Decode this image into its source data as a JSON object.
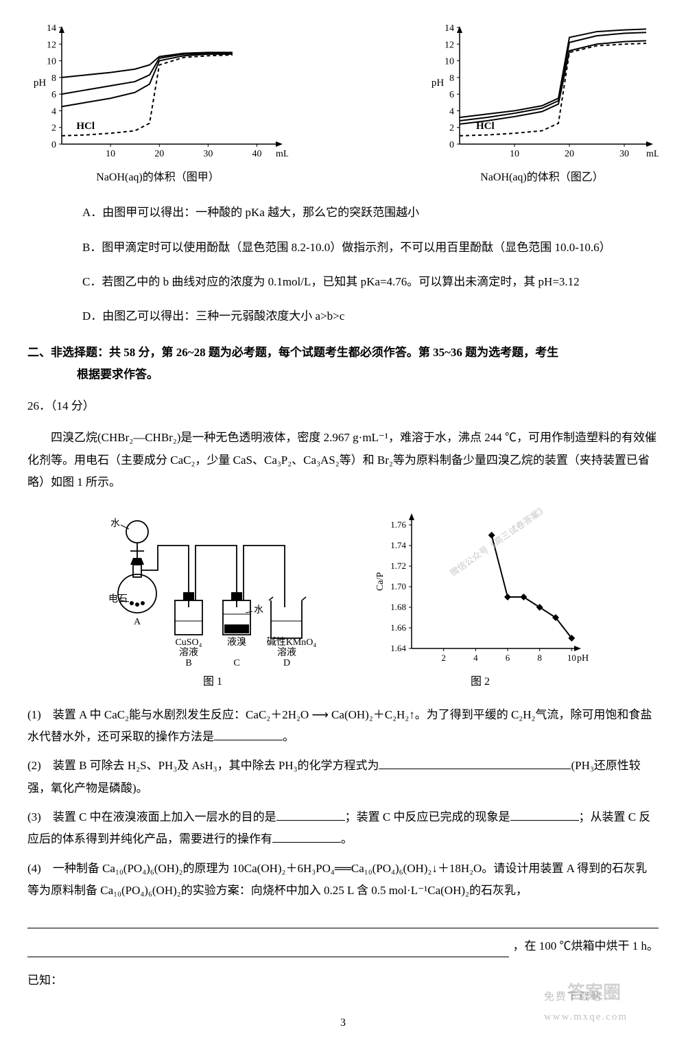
{
  "chart1": {
    "type": "line",
    "xlabel": "mL",
    "ylabel": "pH",
    "caption": "NaOH(aq)的体积（图甲）",
    "xlim": [
      0,
      45
    ],
    "ylim": [
      0,
      14
    ],
    "xticks": [
      10,
      20,
      30,
      40
    ],
    "yticks": [
      0,
      2,
      4,
      6,
      8,
      10,
      12,
      14
    ],
    "curve_label": "HCl",
    "background": "#ffffff",
    "axis_color": "#000000",
    "line_color": "#000000",
    "line_width": 2,
    "curves": [
      {
        "style": "solid",
        "pts": [
          [
            0,
            8
          ],
          [
            5,
            8.3
          ],
          [
            10,
            8.6
          ],
          [
            15,
            9.0
          ],
          [
            18,
            9.5
          ],
          [
            20,
            10.5
          ],
          [
            25,
            10.9
          ],
          [
            30,
            11.0
          ],
          [
            35,
            11.0
          ]
        ]
      },
      {
        "style": "solid",
        "pts": [
          [
            0,
            6
          ],
          [
            5,
            6.5
          ],
          [
            10,
            7.0
          ],
          [
            15,
            7.5
          ],
          [
            18,
            8.3
          ],
          [
            20,
            10.3
          ],
          [
            25,
            10.8
          ],
          [
            30,
            10.9
          ],
          [
            35,
            10.9
          ]
        ]
      },
      {
        "style": "solid",
        "pts": [
          [
            0,
            4.5
          ],
          [
            5,
            5.0
          ],
          [
            10,
            5.5
          ],
          [
            15,
            6.2
          ],
          [
            18,
            7.2
          ],
          [
            20,
            10.0
          ],
          [
            25,
            10.6
          ],
          [
            30,
            10.8
          ],
          [
            35,
            10.8
          ]
        ]
      },
      {
        "style": "dash",
        "pts": [
          [
            0,
            1
          ],
          [
            5,
            1.1
          ],
          [
            10,
            1.3
          ],
          [
            15,
            1.6
          ],
          [
            18,
            2.5
          ],
          [
            20,
            9.5
          ],
          [
            25,
            10.4
          ],
          [
            30,
            10.6
          ],
          [
            35,
            10.7
          ]
        ]
      }
    ]
  },
  "chart2": {
    "type": "line",
    "xlabel": "mL",
    "ylabel": "pH",
    "caption": "NaOH(aq)的体积（图乙）",
    "xlim": [
      0,
      35
    ],
    "ylim": [
      0,
      14
    ],
    "xticks": [
      10,
      20,
      30
    ],
    "yticks": [
      0,
      2,
      4,
      6,
      8,
      10,
      12,
      14
    ],
    "curve_label": "HCl",
    "background": "#ffffff",
    "axis_color": "#000000",
    "line_color": "#000000",
    "line_width": 2,
    "curves": [
      {
        "style": "solid",
        "pts": [
          [
            0,
            3.2
          ],
          [
            5,
            3.6
          ],
          [
            10,
            4.0
          ],
          [
            15,
            4.6
          ],
          [
            18,
            5.5
          ],
          [
            20,
            12.8
          ],
          [
            25,
            13.5
          ],
          [
            30,
            13.7
          ],
          [
            34,
            13.8
          ]
        ]
      },
      {
        "style": "solid",
        "pts": [
          [
            0,
            2.8
          ],
          [
            5,
            3.2
          ],
          [
            10,
            3.7
          ],
          [
            15,
            4.3
          ],
          [
            18,
            5.2
          ],
          [
            20,
            12.2
          ],
          [
            25,
            13.0
          ],
          [
            30,
            13.3
          ],
          [
            34,
            13.4
          ]
        ]
      },
      {
        "style": "solid",
        "pts": [
          [
            0,
            2.4
          ],
          [
            5,
            2.8
          ],
          [
            10,
            3.3
          ],
          [
            15,
            3.9
          ],
          [
            18,
            4.8
          ],
          [
            20,
            11.2
          ],
          [
            25,
            12.0
          ],
          [
            30,
            12.3
          ],
          [
            34,
            12.4
          ]
        ]
      },
      {
        "style": "dash",
        "pts": [
          [
            0,
            1
          ],
          [
            5,
            1.1
          ],
          [
            10,
            1.3
          ],
          [
            15,
            1.6
          ],
          [
            18,
            2.5
          ],
          [
            20,
            11.0
          ],
          [
            25,
            11.8
          ],
          [
            30,
            12.0
          ],
          [
            34,
            12.1
          ]
        ]
      }
    ]
  },
  "options": {
    "A": "A．由图甲可以得出：一种酸的 pKa 越大，那么它的突跃范围越小",
    "B": "B．图甲滴定时可以使用酚酞（显色范围 8.2-10.0）做指示剂，不可以用百里酚酞（显色范围 10.0-10.6）",
    "C": "C．若图乙中的 b 曲线对应的浓度为 0.1mol/L，已知其 pKa=4.76。可以算出未滴定时，其 pH=3.12",
    "D": "D．由图乙可以得出：三种一元弱酸浓度大小 a>b>c"
  },
  "section_heading_line1": "二、非选择题：共 58 分，第 26~28 题为必考题，每个试题考生都必须作答。第 35~36 题为选考题，考生",
  "section_heading_line2": "根据要求作答。",
  "q26": {
    "num": "26．（14 分）",
    "intro": "四溴乙烷(CHBr₂—CHBr₂)是一种无色透明液体，密度 2.967 g·mL⁻¹，难溶于水，沸点 244 ℃，可用作制造塑料的有效催化剂等。用电石（主要成分 CaC₂，少量 CaS、Ca₃P₂、Ca₃AS₂等）和 Br₂等为原料制备少量四溴乙烷的装置（夹持装置已省略）如图 1 所示。",
    "fig1": {
      "caption": "图 1",
      "labels": {
        "water_top": "水",
        "dianshi": "电石",
        "A": "A",
        "B": "B",
        "C": "C",
        "D": "D",
        "cuso4": "CuSO₄",
        "cuso4_2": "溶液",
        "liq_br": "液溴",
        "water_c": "水",
        "kmno4": "碱性KMnO₄",
        "kmno4_2": "溶液"
      }
    },
    "fig2": {
      "type": "line",
      "xlabel": "pH",
      "ylabel": "Ca/P",
      "xlim": [
        0,
        10.5
      ],
      "ylim": [
        1.64,
        1.77
      ],
      "xticks": [
        2,
        4,
        6,
        8,
        10
      ],
      "yticks": [
        1.64,
        1.66,
        1.68,
        1.7,
        1.72,
        1.74,
        1.76
      ],
      "line_color": "#000000",
      "marker": "diamond",
      "pts": [
        [
          5,
          1.75
        ],
        [
          6,
          1.69
        ],
        [
          7,
          1.69
        ],
        [
          8,
          1.68
        ],
        [
          9,
          1.67
        ],
        [
          10,
          1.65
        ]
      ],
      "caption": "图 2",
      "watermark": "微信公众号《高三试卷答案》"
    },
    "p1_a": "(1)　装置 A 中 CaC₂能与水剧烈发生反应：CaC₂＋2H₂O ⟶ Ca(OH)₂＋C₂H₂↑。为了得到平缓的 C₂H₂气流，除可用饱和食盐水代替水外，还可采取的操作方法是",
    "p1_b": "。",
    "p2_a": "(2)　装置 B 可除去 H₂S、PH₃及 AsH₃，其中除去 PH₃的化学方程式为",
    "p2_b": "(PH₃还原性较强，氧化产物是磷酸)。",
    "p3_a": "(3)　装置 C 中在液溴液面上加入一层水的目的是",
    "p3_b": "；装置 C 中反应已完成的现象是",
    "p3_c": "；从装置 C 反应后的体系得到并纯化产品，需要进行的操作有",
    "p3_d": "。",
    "p4_a": "(4)　一种制备 Ca₁₀(PO₄)₆(OH)₂的原理为 10Ca(OH)₂＋6H₃PO₄══Ca₁₀(PO₄)₆(OH)₂↓＋18H₂O。请设计用装置 A 得到的石灰乳等为原料制备 Ca₁₀(PO₄)₆(OH)₂的实验方案：向烧杯中加入 0.25 L 含 0.5 mol·L⁻¹Ca(OH)₂的石灰乳，",
    "p4_b": "，在 100 ℃烘箱中烘干 1 h。",
    "known": "已知："
  },
  "page_num": "3",
  "wm_br1": "答案圈",
  "wm_br2": "免费下载站",
  "wm_br3": "www.mxqe.com"
}
